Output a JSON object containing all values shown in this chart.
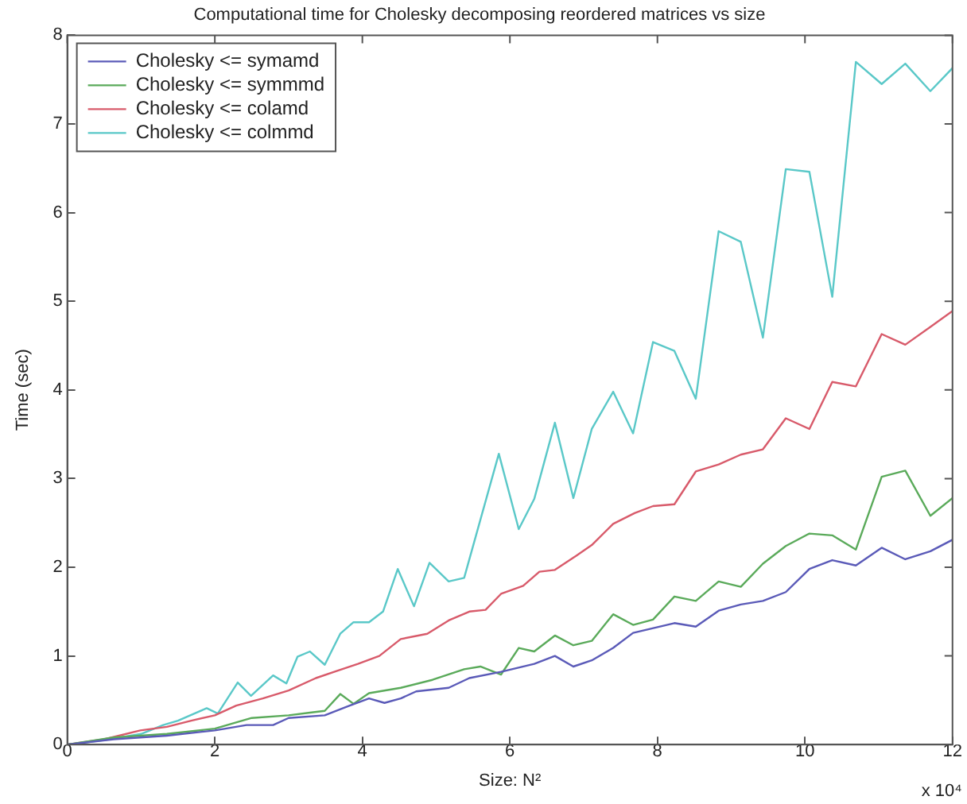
{
  "chart_data": {
    "type": "line",
    "title": "Computational time for Cholesky decomposing reordered matrices vs size",
    "xlabel": "Size: N²",
    "ylabel": "Time (sec)",
    "annotations": [
      "x 10⁴"
    ],
    "xlim": [
      0,
      12
    ],
    "xticks": [
      0,
      2,
      4,
      6,
      8,
      10,
      12
    ],
    "ylim": [
      0,
      8
    ],
    "yticks": [
      0,
      1,
      2,
      3,
      4,
      5,
      6,
      7,
      8
    ],
    "grid": false,
    "legend": "top left",
    "marker": "none",
    "line_style": "solid",
    "series": [
      {
        "name": "Cholesky <= symamd",
        "color": "#5a5ab8",
        "x": [
          0,
          0.63,
          1.35,
          2.0,
          2.43,
          2.79,
          3.0,
          3.49,
          3.8,
          4.09,
          4.3,
          4.52,
          4.73,
          5.17,
          5.45,
          5.88,
          6.33,
          6.61,
          6.86,
          7.11,
          7.4,
          7.67,
          8.23,
          8.52,
          8.83,
          9.13,
          9.43,
          9.74,
          10.06,
          10.37,
          10.69,
          11.04,
          11.36,
          11.7,
          12.0
        ],
        "values": [
          0,
          0.06,
          0.1,
          0.16,
          0.22,
          0.22,
          0.3,
          0.33,
          0.43,
          0.52,
          0.47,
          0.52,
          0.6,
          0.64,
          0.75,
          0.82,
          0.91,
          1.0,
          0.88,
          0.95,
          1.09,
          1.26,
          1.37,
          1.33,
          1.51,
          1.58,
          1.62,
          1.72,
          1.98,
          2.08,
          2.02,
          2.22,
          2.09,
          2.18,
          2.31
        ]
      },
      {
        "name": "Cholesky <= symmmd",
        "color": "#5aaa5a",
        "x": [
          0,
          0.63,
          1.35,
          2.0,
          2.5,
          3.0,
          3.29,
          3.49,
          3.7,
          3.88,
          4.09,
          4.52,
          4.95,
          5.38,
          5.6,
          5.88,
          6.12,
          6.33,
          6.61,
          6.86,
          7.11,
          7.4,
          7.67,
          7.94,
          8.23,
          8.52,
          8.83,
          9.13,
          9.43,
          9.74,
          10.06,
          10.37,
          10.69,
          11.04,
          11.36,
          11.7,
          12.0
        ],
        "values": [
          0,
          0.08,
          0.12,
          0.18,
          0.3,
          0.33,
          0.36,
          0.38,
          0.57,
          0.46,
          0.58,
          0.64,
          0.73,
          0.85,
          0.88,
          0.79,
          1.09,
          1.05,
          1.23,
          1.12,
          1.17,
          1.47,
          1.35,
          1.41,
          1.67,
          1.62,
          1.84,
          1.78,
          2.04,
          2.24,
          2.38,
          2.36,
          2.2,
          3.02,
          3.09,
          2.58,
          2.78
        ]
      },
      {
        "name": "Cholesky <= colamd",
        "color": "#d85a6a",
        "x": [
          0,
          0.5,
          0.99,
          1.35,
          1.68,
          2.0,
          2.29,
          2.65,
          3.0,
          3.37,
          3.65,
          3.94,
          4.23,
          4.52,
          4.88,
          5.17,
          5.45,
          5.67,
          5.88,
          6.18,
          6.4,
          6.61,
          6.9,
          7.11,
          7.4,
          7.69,
          7.94,
          8.23,
          8.52,
          8.83,
          9.13,
          9.43,
          9.74,
          10.06,
          10.37,
          10.69,
          11.04,
          11.36,
          11.7,
          12.0
        ],
        "values": [
          0,
          0.06,
          0.16,
          0.2,
          0.27,
          0.33,
          0.44,
          0.52,
          0.61,
          0.75,
          0.83,
          0.91,
          1.0,
          1.19,
          1.25,
          1.4,
          1.5,
          1.52,
          1.7,
          1.79,
          1.95,
          1.97,
          2.13,
          2.25,
          2.49,
          2.61,
          2.69,
          2.71,
          3.08,
          3.16,
          3.27,
          3.33,
          3.68,
          3.56,
          4.09,
          4.04,
          4.63,
          4.51,
          4.71,
          4.89
        ]
      },
      {
        "name": "Cholesky <= colmmd",
        "color": "#5ac8c8",
        "x": [
          0,
          0.5,
          1.0,
          1.3,
          1.5,
          1.89,
          2.04,
          2.31,
          2.49,
          2.79,
          2.97,
          3.12,
          3.29,
          3.49,
          3.7,
          3.88,
          4.09,
          4.28,
          4.48,
          4.7,
          4.91,
          5.17,
          5.38,
          5.85,
          6.12,
          6.33,
          6.61,
          6.86,
          7.11,
          7.4,
          7.67,
          7.94,
          8.23,
          8.52,
          8.83,
          9.13,
          9.43,
          9.74,
          10.06,
          10.37,
          10.69,
          11.04,
          11.36,
          11.7,
          12.0
        ],
        "values": [
          0,
          0.05,
          0.12,
          0.22,
          0.27,
          0.41,
          0.35,
          0.7,
          0.55,
          0.78,
          0.69,
          0.99,
          1.05,
          0.9,
          1.25,
          1.38,
          1.38,
          1.5,
          1.98,
          1.56,
          2.05,
          1.84,
          1.88,
          3.28,
          2.43,
          2.77,
          3.63,
          2.78,
          3.56,
          3.98,
          3.51,
          4.54,
          4.44,
          3.9,
          5.79,
          5.67,
          4.59,
          6.49,
          6.46,
          5.05,
          7.7,
          7.45,
          7.68,
          7.37,
          7.63
        ]
      }
    ]
  }
}
